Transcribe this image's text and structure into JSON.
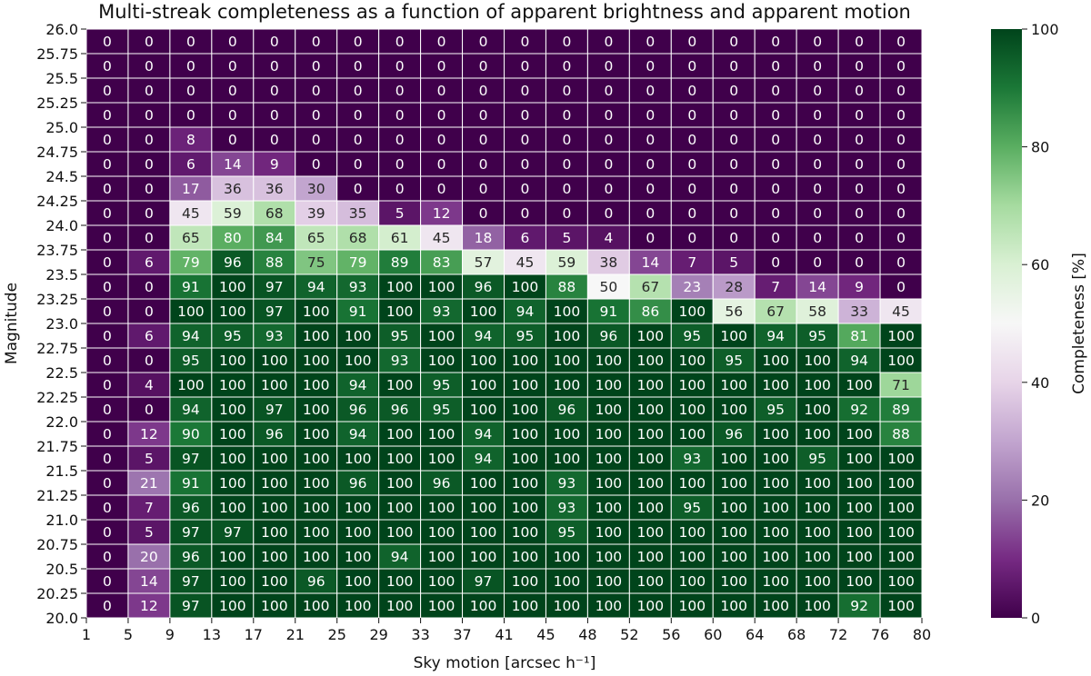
{
  "chart_data": {
    "type": "heatmap",
    "title": "Multi-streak completeness as a function of apparent brightness and apparent motion",
    "xlabel": "Sky motion [arcsec h⁻¹]",
    "ylabel": "Magnitude",
    "colorbar_label": "Completeness [%]",
    "x_ticks": [
      "1",
      "5",
      "9",
      "13",
      "17",
      "21",
      "25",
      "29",
      "33",
      "37",
      "41",
      "45",
      "48",
      "52",
      "56",
      "60",
      "64",
      "68",
      "72",
      "76",
      "80"
    ],
    "y_ticks": [
      "26.0",
      "25.75",
      "25.5",
      "25.25",
      "25.0",
      "24.75",
      "24.5",
      "24.25",
      "24.0",
      "23.75",
      "23.5",
      "23.25",
      "23.0",
      "22.75",
      "22.5",
      "22.25",
      "22.0",
      "21.75",
      "21.5",
      "21.25",
      "21.0",
      "20.75",
      "20.5",
      "20.25",
      "20.0"
    ],
    "colorbar_ticks": [
      0,
      20,
      40,
      60,
      80,
      100
    ],
    "value_range": [
      0,
      100
    ],
    "colormap": [
      "#40004b",
      "#762a83",
      "#9970ab",
      "#c2a5cf",
      "#e7d4e8",
      "#f7f7f7",
      "#d9f0d3",
      "#a6dba0",
      "#5aae61",
      "#1b7837",
      "#00441b"
    ],
    "values": [
      [
        0,
        0,
        0,
        0,
        0,
        0,
        0,
        0,
        0,
        0,
        0,
        0,
        0,
        0,
        0,
        0,
        0,
        0,
        0,
        0
      ],
      [
        0,
        0,
        0,
        0,
        0,
        0,
        0,
        0,
        0,
        0,
        0,
        0,
        0,
        0,
        0,
        0,
        0,
        0,
        0,
        0
      ],
      [
        0,
        0,
        0,
        0,
        0,
        0,
        0,
        0,
        0,
        0,
        0,
        0,
        0,
        0,
        0,
        0,
        0,
        0,
        0,
        0
      ],
      [
        0,
        0,
        0,
        0,
        0,
        0,
        0,
        0,
        0,
        0,
        0,
        0,
        0,
        0,
        0,
        0,
        0,
        0,
        0,
        0
      ],
      [
        0,
        0,
        8,
        0,
        0,
        0,
        0,
        0,
        0,
        0,
        0,
        0,
        0,
        0,
        0,
        0,
        0,
        0,
        0,
        0
      ],
      [
        0,
        0,
        6,
        14,
        9,
        0,
        0,
        0,
        0,
        0,
        0,
        0,
        0,
        0,
        0,
        0,
        0,
        0,
        0,
        0
      ],
      [
        0,
        0,
        17,
        36,
        36,
        30,
        0,
        0,
        0,
        0,
        0,
        0,
        0,
        0,
        0,
        0,
        0,
        0,
        0,
        0
      ],
      [
        0,
        0,
        45,
        59,
        68,
        39,
        35,
        5,
        12,
        0,
        0,
        0,
        0,
        0,
        0,
        0,
        0,
        0,
        0,
        0
      ],
      [
        0,
        0,
        65,
        80,
        84,
        65,
        68,
        61,
        45,
        18,
        6,
        5,
        4,
        0,
        0,
        0,
        0,
        0,
        0,
        0
      ],
      [
        0,
        6,
        79,
        96,
        88,
        75,
        79,
        89,
        83,
        57,
        45,
        59,
        38,
        14,
        7,
        5,
        0,
        0,
        0,
        0
      ],
      [
        0,
        0,
        91,
        100,
        97,
        94,
        93,
        100,
        100,
        96,
        100,
        88,
        50,
        67,
        23,
        28,
        7,
        14,
        9,
        0
      ],
      [
        0,
        0,
        100,
        100,
        97,
        100,
        91,
        100,
        93,
        100,
        94,
        100,
        91,
        86,
        100,
        56,
        67,
        58,
        33,
        45
      ],
      [
        0,
        6,
        94,
        95,
        93,
        100,
        100,
        95,
        100,
        94,
        95,
        100,
        96,
        100,
        95,
        100,
        94,
        95,
        81,
        100
      ],
      [
        0,
        0,
        95,
        100,
        100,
        100,
        100,
        93,
        100,
        100,
        100,
        100,
        100,
        100,
        100,
        95,
        100,
        100,
        94,
        100
      ],
      [
        0,
        4,
        100,
        100,
        100,
        100,
        94,
        100,
        95,
        100,
        100,
        100,
        100,
        100,
        100,
        100,
        100,
        100,
        100,
        71
      ],
      [
        0,
        0,
        94,
        100,
        97,
        100,
        96,
        96,
        95,
        100,
        100,
        96,
        100,
        100,
        100,
        100,
        95,
        100,
        92,
        89
      ],
      [
        0,
        12,
        90,
        100,
        96,
        100,
        94,
        100,
        100,
        94,
        100,
        100,
        100,
        100,
        100,
        96,
        100,
        100,
        100,
        88
      ],
      [
        0,
        5,
        97,
        100,
        100,
        100,
        100,
        100,
        100,
        94,
        100,
        100,
        100,
        100,
        93,
        100,
        100,
        95,
        100,
        100
      ],
      [
        0,
        21,
        91,
        100,
        100,
        100,
        96,
        100,
        96,
        100,
        100,
        93,
        100,
        100,
        100,
        100,
        100,
        100,
        100,
        100
      ],
      [
        0,
        7,
        96,
        100,
        100,
        100,
        100,
        100,
        100,
        100,
        100,
        93,
        100,
        100,
        95,
        100,
        100,
        100,
        100,
        100
      ],
      [
        0,
        5,
        97,
        97,
        100,
        100,
        100,
        100,
        100,
        100,
        100,
        95,
        100,
        100,
        100,
        100,
        100,
        100,
        100,
        100
      ],
      [
        0,
        20,
        96,
        100,
        100,
        100,
        100,
        94,
        100,
        100,
        100,
        100,
        100,
        100,
        100,
        100,
        100,
        100,
        100,
        100
      ],
      [
        0,
        14,
        97,
        100,
        100,
        96,
        100,
        100,
        100,
        97,
        100,
        100,
        100,
        100,
        100,
        100,
        100,
        100,
        100,
        100
      ],
      [
        0,
        12,
        97,
        100,
        100,
        100,
        100,
        100,
        100,
        100,
        100,
        100,
        100,
        100,
        100,
        100,
        100,
        100,
        92,
        100
      ]
    ]
  }
}
